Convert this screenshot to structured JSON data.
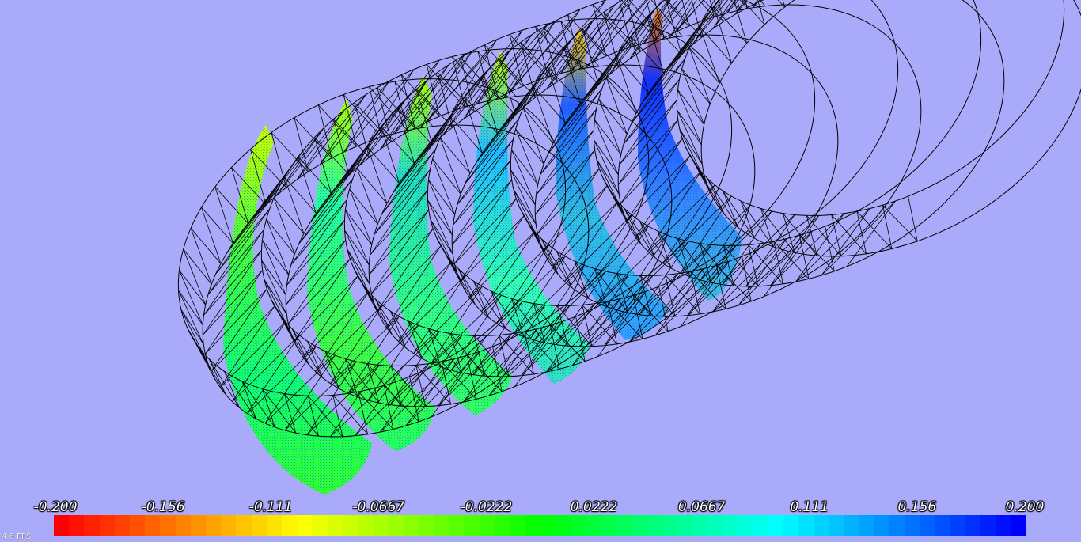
{
  "scene": {
    "background": "#aaaafa",
    "wireframe_color": "#000000",
    "blade_count": 6
  },
  "colorbar": {
    "ticks": [
      "-0.200",
      "-0.156",
      "-0.111",
      "-0.0667",
      "-0.0222",
      "0.0222",
      "0.0667",
      "0.111",
      "0.156",
      "0.200"
    ],
    "colors": [
      "#ff0000",
      "#ff8000",
      "#ffff00",
      "#80ff00",
      "#00ff00",
      "#00ff80",
      "#00ffff",
      "#0080ff",
      "#0000ff"
    ],
    "segments": 64
  },
  "fps": {
    "label": "4.6 FPS"
  }
}
